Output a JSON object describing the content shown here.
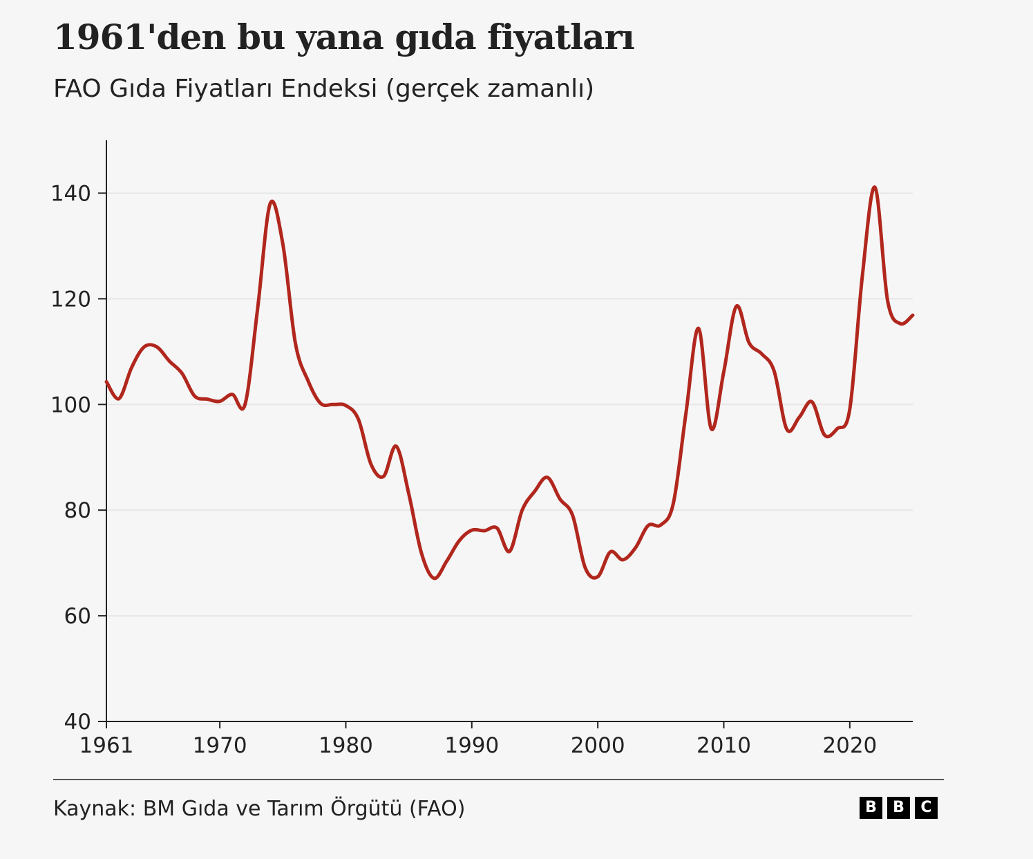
{
  "header": {
    "title": "1961'den bu yana gıda fiyatları",
    "subtitle": "FAO Gıda Fiyatları Endeksi (gerçek zamanlı)"
  },
  "footer": {
    "source": "Kaynak: BM Gıda ve Tarım Örgütü (FAO)",
    "logo_letters": [
      "B",
      "B",
      "C"
    ]
  },
  "colors": {
    "line": "#b1271d",
    "grid": "#e6e6e6",
    "axis": "#222222"
  },
  "chart_data": {
    "type": "line",
    "title": "1961'den bu yana gıda fiyatları",
    "subtitle": "FAO Gıda Fiyatları Endeksi (gerçek zamanlı)",
    "xlabel": "",
    "ylabel": "",
    "xlim": [
      1961,
      2025
    ],
    "ylim": [
      40,
      150
    ],
    "x_ticks": [
      1961,
      1970,
      1980,
      1990,
      2000,
      2010,
      2020
    ],
    "y_ticks": [
      40,
      60,
      80,
      100,
      120,
      140
    ],
    "grid": true,
    "x": [
      1961,
      1962,
      1963,
      1964,
      1965,
      1966,
      1967,
      1968,
      1969,
      1970,
      1971,
      1972,
      1973,
      1974,
      1975,
      1976,
      1977,
      1978,
      1979,
      1980,
      1981,
      1982,
      1983,
      1984,
      1985,
      1986,
      1987,
      1988,
      1989,
      1990,
      1991,
      1992,
      1993,
      1994,
      1995,
      1996,
      1997,
      1998,
      1999,
      2000,
      2001,
      2002,
      2003,
      2004,
      2005,
      2006,
      2007,
      2008,
      2009,
      2010,
      2011,
      2012,
      2013,
      2014,
      2015,
      2016,
      2017,
      2018,
      2019,
      2020,
      2021,
      2022,
      2023,
      2024,
      2025
    ],
    "series": [
      {
        "values": [
          104.3,
          101.1,
          107.0,
          110.9,
          110.9,
          108.2,
          105.9,
          101.6,
          101.0,
          100.6,
          101.9,
          100.0,
          118.1,
          138.0,
          130.4,
          111.6,
          104.5,
          100.2,
          100.0,
          99.8,
          97.2,
          88.7,
          86.4,
          92.1,
          83.1,
          71.9,
          67.1,
          70.3,
          74.2,
          76.2,
          76.1,
          76.6,
          72.2,
          80.0,
          83.6,
          86.2,
          82.1,
          79.0,
          69.1,
          67.4,
          72.1,
          70.6,
          72.9,
          77.1,
          77.2,
          81.3,
          98.4,
          114.4,
          95.4,
          106.2,
          118.6,
          111.7,
          109.6,
          106.3,
          95.3,
          97.6,
          100.5,
          94.2,
          95.4,
          99.1,
          124.4,
          141.1,
          119.7,
          115.3,
          116.9
        ]
      }
    ]
  }
}
